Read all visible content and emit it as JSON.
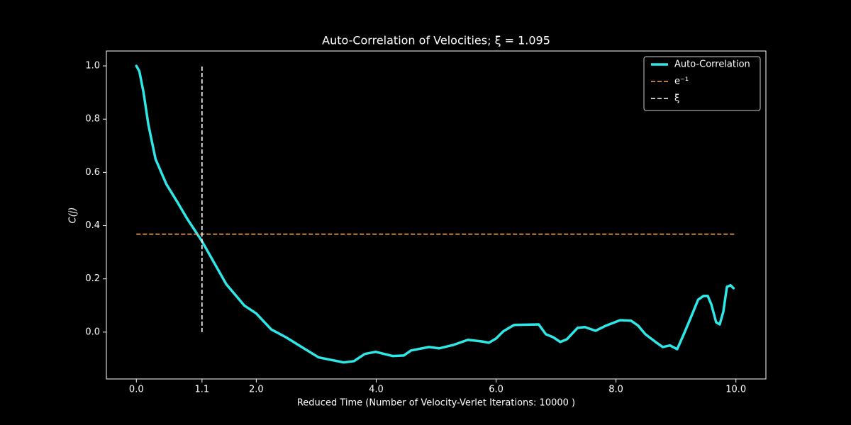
{
  "chart_data": {
    "type": "line",
    "title": "Auto-Correlation of Velocities; ξ = 1.095",
    "x_label": "Reduced Time (Number of Velocity-Verlet Iterations: 10000  )",
    "y_label": "C(j)",
    "xlim": [
      -0.5,
      10.5
    ],
    "ylim": [
      -0.176,
      1.056
    ],
    "xticks": [
      {
        "value": 0,
        "label": "0.0"
      },
      {
        "value": 1.095,
        "label": "1.1"
      },
      {
        "value": 2,
        "label": "2.0"
      },
      {
        "value": 4,
        "label": "4.0"
      },
      {
        "value": 6,
        "label": "6.0"
      },
      {
        "value": 8,
        "label": "8.0"
      },
      {
        "value": 10,
        "label": "10.0"
      }
    ],
    "yticks": [
      {
        "value": 0,
        "label": "0.0"
      },
      0.2,
      0.4,
      0.6,
      0.8,
      {
        "value": 1,
        "label": "1.0"
      }
    ],
    "legend": "upper right",
    "series": [
      {
        "name": "Auto-Correlation",
        "color": "#2ee8e8",
        "x": [
          0,
          0.05,
          0.12,
          0.2,
          0.32,
          0.5,
          0.68,
          0.85,
          1.09,
          1.5,
          1.8,
          2.0,
          2.25,
          2.5,
          2.75,
          3.04,
          3.46,
          3.63,
          3.81,
          3.99,
          4.28,
          4.46,
          4.58,
          4.88,
          5.05,
          5.29,
          5.53,
          5.76,
          5.88,
          6.0,
          6.12,
          6.3,
          6.71,
          6.83,
          6.95,
          7.07,
          7.18,
          7.36,
          7.48,
          7.66,
          7.83,
          8.07,
          8.25,
          8.37,
          8.49,
          8.66,
          8.78,
          8.9,
          9.02,
          9.14,
          9.25,
          9.37,
          9.46,
          9.53,
          9.59,
          9.67,
          9.73,
          9.79,
          9.85,
          9.91,
          9.96
        ],
        "values": [
          1.0,
          0.98,
          0.9,
          0.78,
          0.65,
          0.556,
          0.49,
          0.425,
          0.343,
          0.18,
          0.1,
          0.07,
          0.01,
          -0.02,
          -0.055,
          -0.095,
          -0.114,
          -0.109,
          -0.082,
          -0.074,
          -0.09,
          -0.088,
          -0.069,
          -0.056,
          -0.061,
          -0.048,
          -0.029,
          -0.035,
          -0.04,
          -0.024,
          0.003,
          0.027,
          0.029,
          -0.008,
          -0.019,
          -0.037,
          -0.027,
          0.016,
          0.019,
          0.005,
          0.024,
          0.045,
          0.043,
          0.024,
          -0.008,
          -0.037,
          -0.056,
          -0.05,
          -0.064,
          -0.003,
          0.056,
          0.122,
          0.136,
          0.136,
          0.104,
          0.037,
          0.029,
          0.077,
          0.17,
          0.176,
          0.165
        ]
      },
      {
        "name": "e⁻¹",
        "color": "#f5a55a",
        "dashed": true,
        "x": [
          0,
          10
        ],
        "values": [
          0.3679,
          0.3679
        ]
      },
      {
        "name": "ξ",
        "color": "#ffffff",
        "dashed": true,
        "x": [
          1.095,
          1.095
        ],
        "values": [
          0,
          1
        ]
      }
    ]
  }
}
